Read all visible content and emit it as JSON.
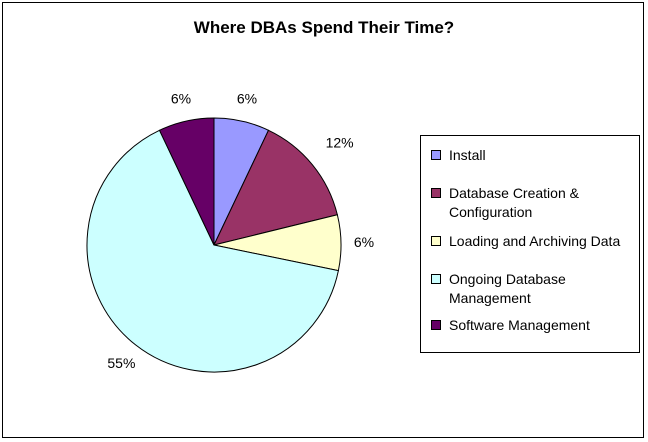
{
  "chart_data": {
    "type": "pie",
    "title": "Where DBAs Spend Their Time?",
    "categories": [
      "Install",
      "Database Creation & Configuration",
      "Loading and Archiving Data",
      "Ongoing Database Management",
      "Software Management"
    ],
    "values": [
      6,
      12,
      6,
      55,
      6
    ],
    "data_labels": [
      "6%",
      "12%",
      "6%",
      "55%",
      "6%"
    ],
    "colors": [
      "#9999ff",
      "#993366",
      "#ffffcc",
      "#ccffff",
      "#660066"
    ],
    "legend_position": "right"
  },
  "legend": {
    "items": [
      {
        "label": "Install",
        "color": "#9999ff"
      },
      {
        "label": "Database Creation & Configuration",
        "color": "#993366"
      },
      {
        "label": "Loading and Archiving Data",
        "color": "#ffffcc"
      },
      {
        "label": "Ongoing Database Management",
        "color": "#ccffff"
      },
      {
        "label": "Software Management",
        "color": "#660066"
      }
    ]
  }
}
